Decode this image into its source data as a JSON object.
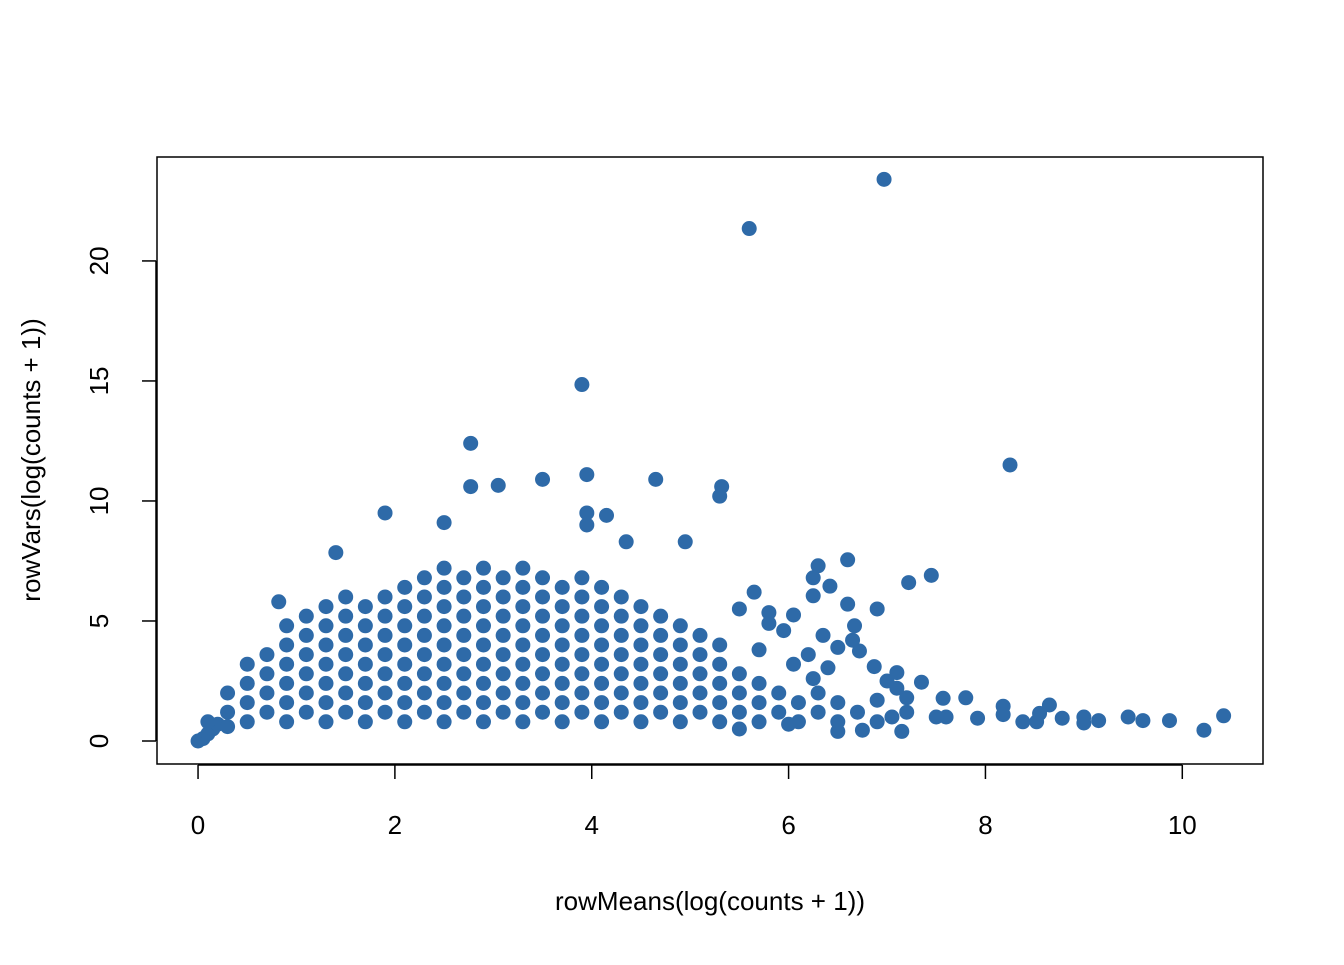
{
  "chart_data": {
    "type": "scatter",
    "xlabel": "rowMeans(log(counts + 1))",
    "ylabel": "rowVars(log(counts + 1))",
    "color": "#2e6aa8",
    "xlim": [
      -0.417,
      10.82
    ],
    "xticks": [
      0,
      2,
      4,
      6,
      8,
      10
    ],
    "ylim": [
      -0.958,
      24.33
    ],
    "yticks": [
      0,
      5,
      10,
      15,
      20
    ],
    "x": [
      0,
      0.05,
      0.1,
      0.15,
      0.2,
      0.1,
      0.3,
      0.3,
      0.3,
      0.5,
      0.5,
      0.5,
      0.5,
      0.7,
      0.7,
      0.7,
      0.7,
      0.9,
      0.9,
      0.9,
      0.9,
      0.9,
      0.9,
      1.1,
      1.1,
      1.1,
      1.1,
      1.1,
      1.1,
      1.3,
      1.3,
      1.3,
      1.3,
      1.3,
      1.3,
      1.3,
      1.5,
      1.5,
      1.5,
      1.5,
      1.5,
      1.5,
      1.5,
      1.7,
      1.7,
      1.7,
      1.7,
      1.7,
      1.7,
      1.7,
      1.9,
      1.9,
      1.9,
      1.9,
      1.9,
      1.9,
      1.9,
      2.1,
      2.1,
      2.1,
      2.1,
      2.1,
      2.1,
      2.1,
      2.1,
      2.3,
      2.3,
      2.3,
      2.3,
      2.3,
      2.3,
      2.3,
      2.3,
      2.5,
      2.5,
      2.5,
      2.5,
      2.5,
      2.5,
      2.5,
      2.5,
      2.5,
      2.7,
      2.7,
      2.7,
      2.7,
      2.7,
      2.7,
      2.7,
      2.7,
      2.9,
      2.9,
      2.9,
      2.9,
      2.9,
      2.9,
      2.9,
      2.9,
      2.9,
      3.1,
      3.1,
      3.1,
      3.1,
      3.1,
      3.1,
      3.1,
      3.1,
      3.3,
      3.3,
      3.3,
      3.3,
      3.3,
      3.3,
      3.3,
      3.3,
      3.3,
      3.5,
      3.5,
      3.5,
      3.5,
      3.5,
      3.5,
      3.5,
      3.5,
      3.7,
      3.7,
      3.7,
      3.7,
      3.7,
      3.7,
      3.7,
      3.7,
      3.9,
      3.9,
      3.9,
      3.9,
      3.9,
      3.9,
      3.9,
      3.9,
      4.1,
      4.1,
      4.1,
      4.1,
      4.1,
      4.1,
      4.1,
      4.1,
      4.3,
      4.3,
      4.3,
      4.3,
      4.3,
      4.3,
      4.3,
      4.5,
      4.5,
      4.5,
      4.5,
      4.5,
      4.5,
      4.5,
      4.7,
      4.7,
      4.7,
      4.7,
      4.7,
      4.7,
      4.9,
      4.9,
      4.9,
      4.9,
      4.9,
      4.9,
      5.1,
      5.1,
      5.1,
      5.1,
      5.1,
      5.3,
      5.3,
      5.3,
      5.3,
      5.3,
      5.5,
      5.5,
      5.5,
      5.7,
      5.7,
      5.7,
      5.9,
      5.9,
      6.1,
      6.1,
      6.3,
      6.3,
      6.5,
      6.5,
      6.7,
      6.9,
      6.97,
      5.6,
      3.9,
      2.77,
      8.25,
      2.77,
      3.05,
      3.5,
      3.95,
      4.65,
      5.32,
      5.3,
      3.95,
      3.95,
      4.15,
      1.9,
      2.5,
      4.35,
      4.95,
      1.4,
      0.82,
      7.45,
      7.22,
      6.6,
      6.3,
      6.25,
      6.42,
      6.25,
      6.05,
      5.65,
      5.95,
      6.6,
      6.9,
      6.67,
      6.65,
      6.72,
      6.5,
      6.4,
      6.35,
      6.87,
      7.1,
      7.35,
      7.57,
      7.8,
      7.6,
      7.92,
      8.18,
      8.18,
      8.38,
      8.52,
      8.55,
      8.65,
      8.78,
      9.0,
      9.0,
      9.15,
      9.45,
      9.6,
      9.87,
      10.22,
      10.42,
      7.5,
      7.2,
      7.05,
      6.5,
      6.75,
      7.15,
      5.8,
      5.5,
      5.8,
      5.7,
      6.2,
      6.05,
      6.9,
      7.1,
      7.2,
      7.0,
      6.25,
      6.0,
      5.5
    ],
    "values": [
      0,
      0.1,
      0.3,
      0.5,
      0.7,
      0.8,
      0.6,
      1.2,
      2.0,
      0.8,
      1.6,
      2.4,
      3.2,
      1.2,
      2.0,
      2.8,
      3.6,
      0.8,
      1.6,
      2.4,
      3.2,
      4.0,
      4.8,
      1.2,
      2.0,
      2.8,
      3.6,
      4.4,
      5.2,
      0.8,
      1.6,
      2.4,
      3.2,
      4.0,
      4.8,
      5.6,
      1.2,
      2.0,
      2.8,
      3.6,
      4.4,
      5.2,
      6.0,
      0.8,
      1.6,
      2.4,
      3.2,
      4.0,
      4.8,
      5.6,
      1.2,
      2.0,
      2.8,
      3.6,
      4.4,
      5.2,
      6.0,
      0.8,
      1.6,
      2.4,
      3.2,
      4.0,
      4.8,
      5.6,
      6.4,
      1.2,
      2.0,
      2.8,
      3.6,
      4.4,
      5.2,
      6.0,
      6.8,
      0.8,
      1.6,
      2.4,
      3.2,
      4.0,
      4.8,
      5.6,
      6.4,
      7.2,
      1.2,
      2.0,
      2.8,
      3.6,
      4.4,
      5.2,
      6.0,
      6.8,
      0.8,
      1.6,
      2.4,
      3.2,
      4.0,
      4.8,
      5.6,
      6.4,
      7.2,
      1.2,
      2.0,
      2.8,
      3.6,
      4.4,
      5.2,
      6.0,
      6.8,
      0.8,
      1.6,
      2.4,
      3.2,
      4.0,
      4.8,
      5.6,
      6.4,
      7.2,
      1.2,
      2.0,
      2.8,
      3.6,
      4.4,
      5.2,
      6.0,
      6.8,
      0.8,
      1.6,
      2.4,
      3.2,
      4.0,
      4.8,
      5.6,
      6.4,
      1.2,
      2.0,
      2.8,
      3.6,
      4.4,
      5.2,
      6.0,
      6.8,
      0.8,
      1.6,
      2.4,
      3.2,
      4.0,
      4.8,
      5.6,
      6.4,
      1.2,
      2.0,
      2.8,
      3.6,
      4.4,
      5.2,
      6.0,
      0.8,
      1.6,
      2.4,
      3.2,
      4.0,
      4.8,
      5.6,
      1.2,
      2.0,
      2.8,
      3.6,
      4.4,
      5.2,
      0.8,
      1.6,
      2.4,
      3.2,
      4.0,
      4.8,
      1.2,
      2.0,
      2.8,
      3.6,
      4.4,
      0.8,
      1.6,
      2.4,
      3.2,
      4.0,
      1.2,
      2.0,
      2.8,
      0.8,
      1.6,
      2.4,
      1.2,
      2.0,
      0.8,
      1.6,
      1.2,
      2.0,
      0.8,
      1.6,
      1.2,
      0.8,
      23.4,
      21.35,
      14.85,
      12.4,
      11.5,
      10.6,
      10.65,
      10.9,
      11.1,
      10.9,
      10.6,
      10.2,
      9.5,
      9.0,
      9.4,
      9.5,
      9.1,
      8.3,
      8.3,
      7.85,
      5.8,
      6.9,
      6.6,
      7.55,
      7.3,
      6.8,
      6.45,
      6.05,
      5.25,
      6.2,
      4.6,
      5.7,
      5.5,
      4.8,
      4.2,
      3.75,
      3.9,
      3.05,
      4.4,
      3.1,
      2.85,
      2.45,
      1.78,
      1.8,
      1.0,
      0.95,
      1.45,
      1.1,
      0.8,
      0.8,
      1.15,
      1.5,
      0.95,
      1.0,
      0.75,
      0.85,
      1.0,
      0.85,
      0.85,
      0.45,
      1.05,
      1.0,
      1.8,
      1.0,
      0.4,
      0.45,
      0.4,
      5.35,
      5.5,
      4.9,
      3.8,
      3.6,
      3.2,
      1.7,
      2.2,
      1.2,
      2.5,
      2.6,
      0.7,
      0.5
    ]
  }
}
